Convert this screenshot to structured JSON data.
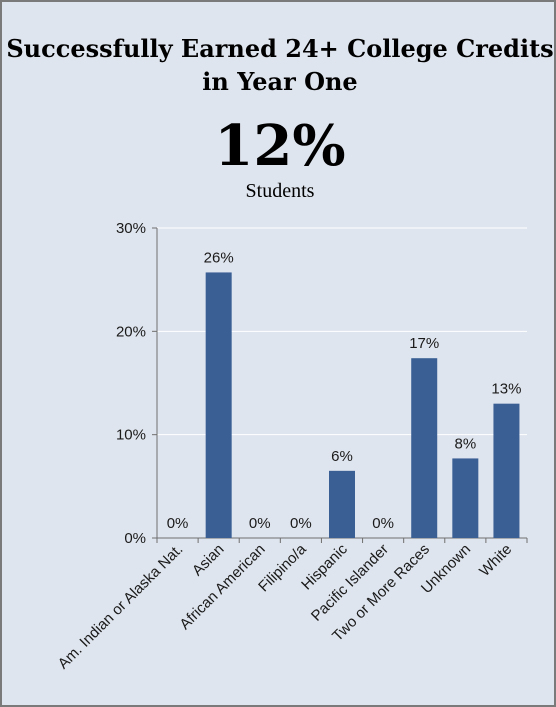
{
  "title_line1": "Successfully Earned 24+ College Credits",
  "title_line2": "in Year One",
  "kpi_value": "12%",
  "kpi_label": "Students",
  "colors": {
    "panel": "#dfe5ee",
    "bar": "#3a5f95",
    "grid": "#ffffff",
    "axis": "#6f6f6f"
  },
  "chart_data": {
    "type": "bar",
    "title": "",
    "xlabel": "",
    "ylabel": "",
    "categories": [
      "Am. Indian or Alaska Nat.",
      "Asian",
      "African American",
      "Filipino/a",
      "Hispanic",
      "Pacific Islander",
      "Two or More Races",
      "Unknown",
      "White"
    ],
    "values": [
      0,
      25.7,
      0,
      0,
      6.5,
      0,
      17.4,
      7.7,
      13.0
    ],
    "data_labels": [
      "0%",
      "26%",
      "0%",
      "0%",
      "6%",
      "0%",
      "17%",
      "8%",
      "13%"
    ],
    "yticks": [
      "0%",
      "10%",
      "20%",
      "30%"
    ],
    "ylim": [
      0,
      30
    ],
    "grid": true,
    "legend": "none"
  }
}
